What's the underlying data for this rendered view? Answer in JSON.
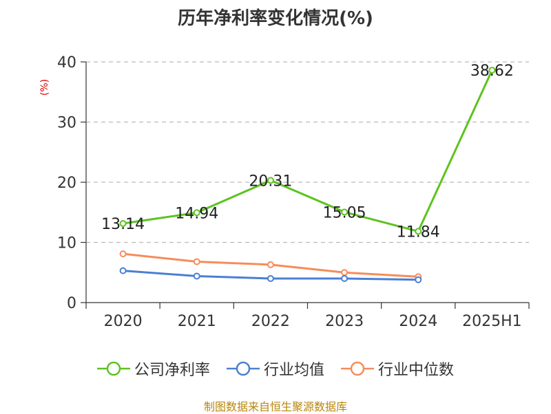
{
  "chart_data": {
    "type": "line",
    "title": "历年净利率变化情况(%)",
    "ylabel": "(%)",
    "categories": [
      "2020",
      "2021",
      "2022",
      "2023",
      "2024",
      "2025H1"
    ],
    "ylim": [
      0,
      40
    ],
    "yticks": [
      "0",
      "10",
      "20",
      "30",
      "40"
    ],
    "grid": true,
    "legend_position": "bottom",
    "series": [
      {
        "name": "公司净利率",
        "color": "#5cc31f",
        "values": [
          13.14,
          14.94,
          20.31,
          15.05,
          11.84,
          38.62
        ],
        "labels": [
          "13.14",
          "14.94",
          "20.31",
          "15.05",
          "11.84",
          "38.62"
        ]
      },
      {
        "name": "行业均值",
        "color": "#4a7fd4",
        "values": [
          5.3,
          4.4,
          4.0,
          4.0,
          3.8,
          null
        ]
      },
      {
        "name": "行业中位数",
        "color": "#f58c5a",
        "values": [
          8.1,
          6.8,
          6.3,
          5.0,
          4.3,
          null
        ]
      }
    ]
  },
  "source": "制图数据来自恒生聚源数据库"
}
